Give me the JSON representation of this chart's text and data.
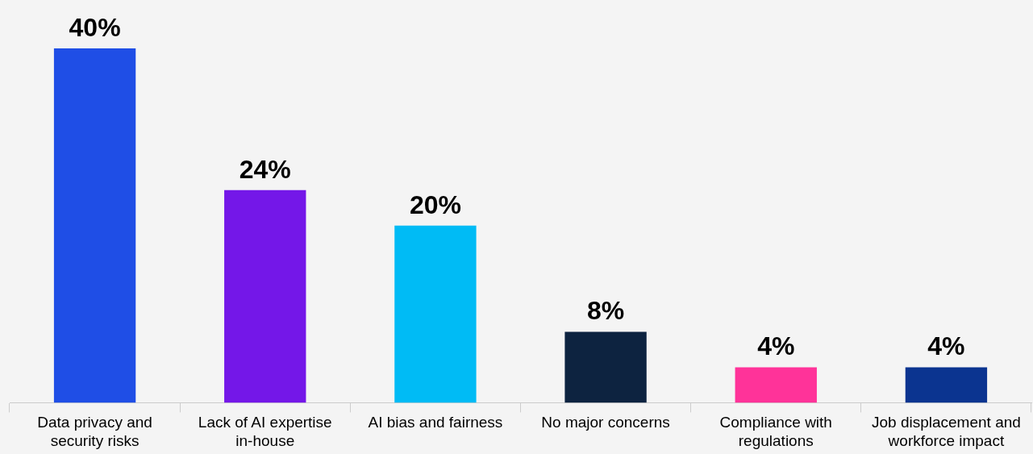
{
  "chart_data": {
    "type": "bar",
    "categories": [
      "Data privacy and security risks",
      "Lack of AI expertise in-house",
      "AI bias and fairness",
      "No major concerns",
      "Compliance with regulations",
      "Job displacement and workforce impact"
    ],
    "values": [
      40,
      24,
      20,
      8,
      4,
      4
    ],
    "value_labels": [
      "40%",
      "24%",
      "20%",
      "8%",
      "4%",
      "4%"
    ],
    "colors": [
      "#1f4ee6",
      "#7417e8",
      "#00bbf5",
      "#0d2340",
      "#ff3399",
      "#0b3490"
    ],
    "grid": false,
    "legend": false
  }
}
